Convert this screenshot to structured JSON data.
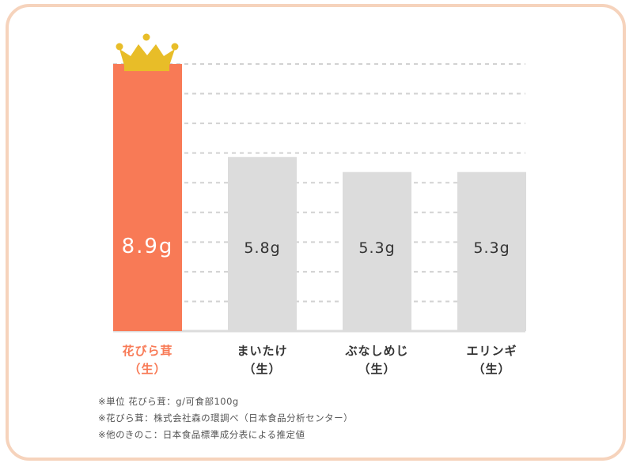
{
  "chart_data": {
    "type": "bar",
    "categories": [
      "花びら茸\n（生）",
      "まいたけ\n（生）",
      "ぶなしめじ\n（生）",
      "エリンギ\n（生）"
    ],
    "values": [
      8.9,
      5.8,
      5.3,
      5.3
    ],
    "value_labels": [
      "8.9g",
      "5.8g",
      "5.3g",
      "5.3g"
    ],
    "ylim": [
      0,
      8.9
    ],
    "grid": true,
    "highlight_index": 0,
    "bar_colors": [
      "#f87a56",
      "#dcdcdc",
      "#dcdcdc",
      "#dcdcdc"
    ],
    "label_colors": [
      "#f87a56",
      "#333333",
      "#333333",
      "#333333"
    ],
    "value_label_colors": [
      "#ffffff",
      "#333333",
      "#333333",
      "#333333"
    ],
    "crown_icon": "crown-icon"
  },
  "colors": {
    "frame_border": "#f6d3bc",
    "accent": "#f87a56",
    "crown": "#e8bd28",
    "grid": "#d2d2d2"
  },
  "notes": [
    "※単位 花びら茸：g/可食部100g",
    "※花びら茸：株式会社森の環調べ（日本食品分析センター）",
    "※他のきのこ：日本食品標準成分表による推定値"
  ]
}
